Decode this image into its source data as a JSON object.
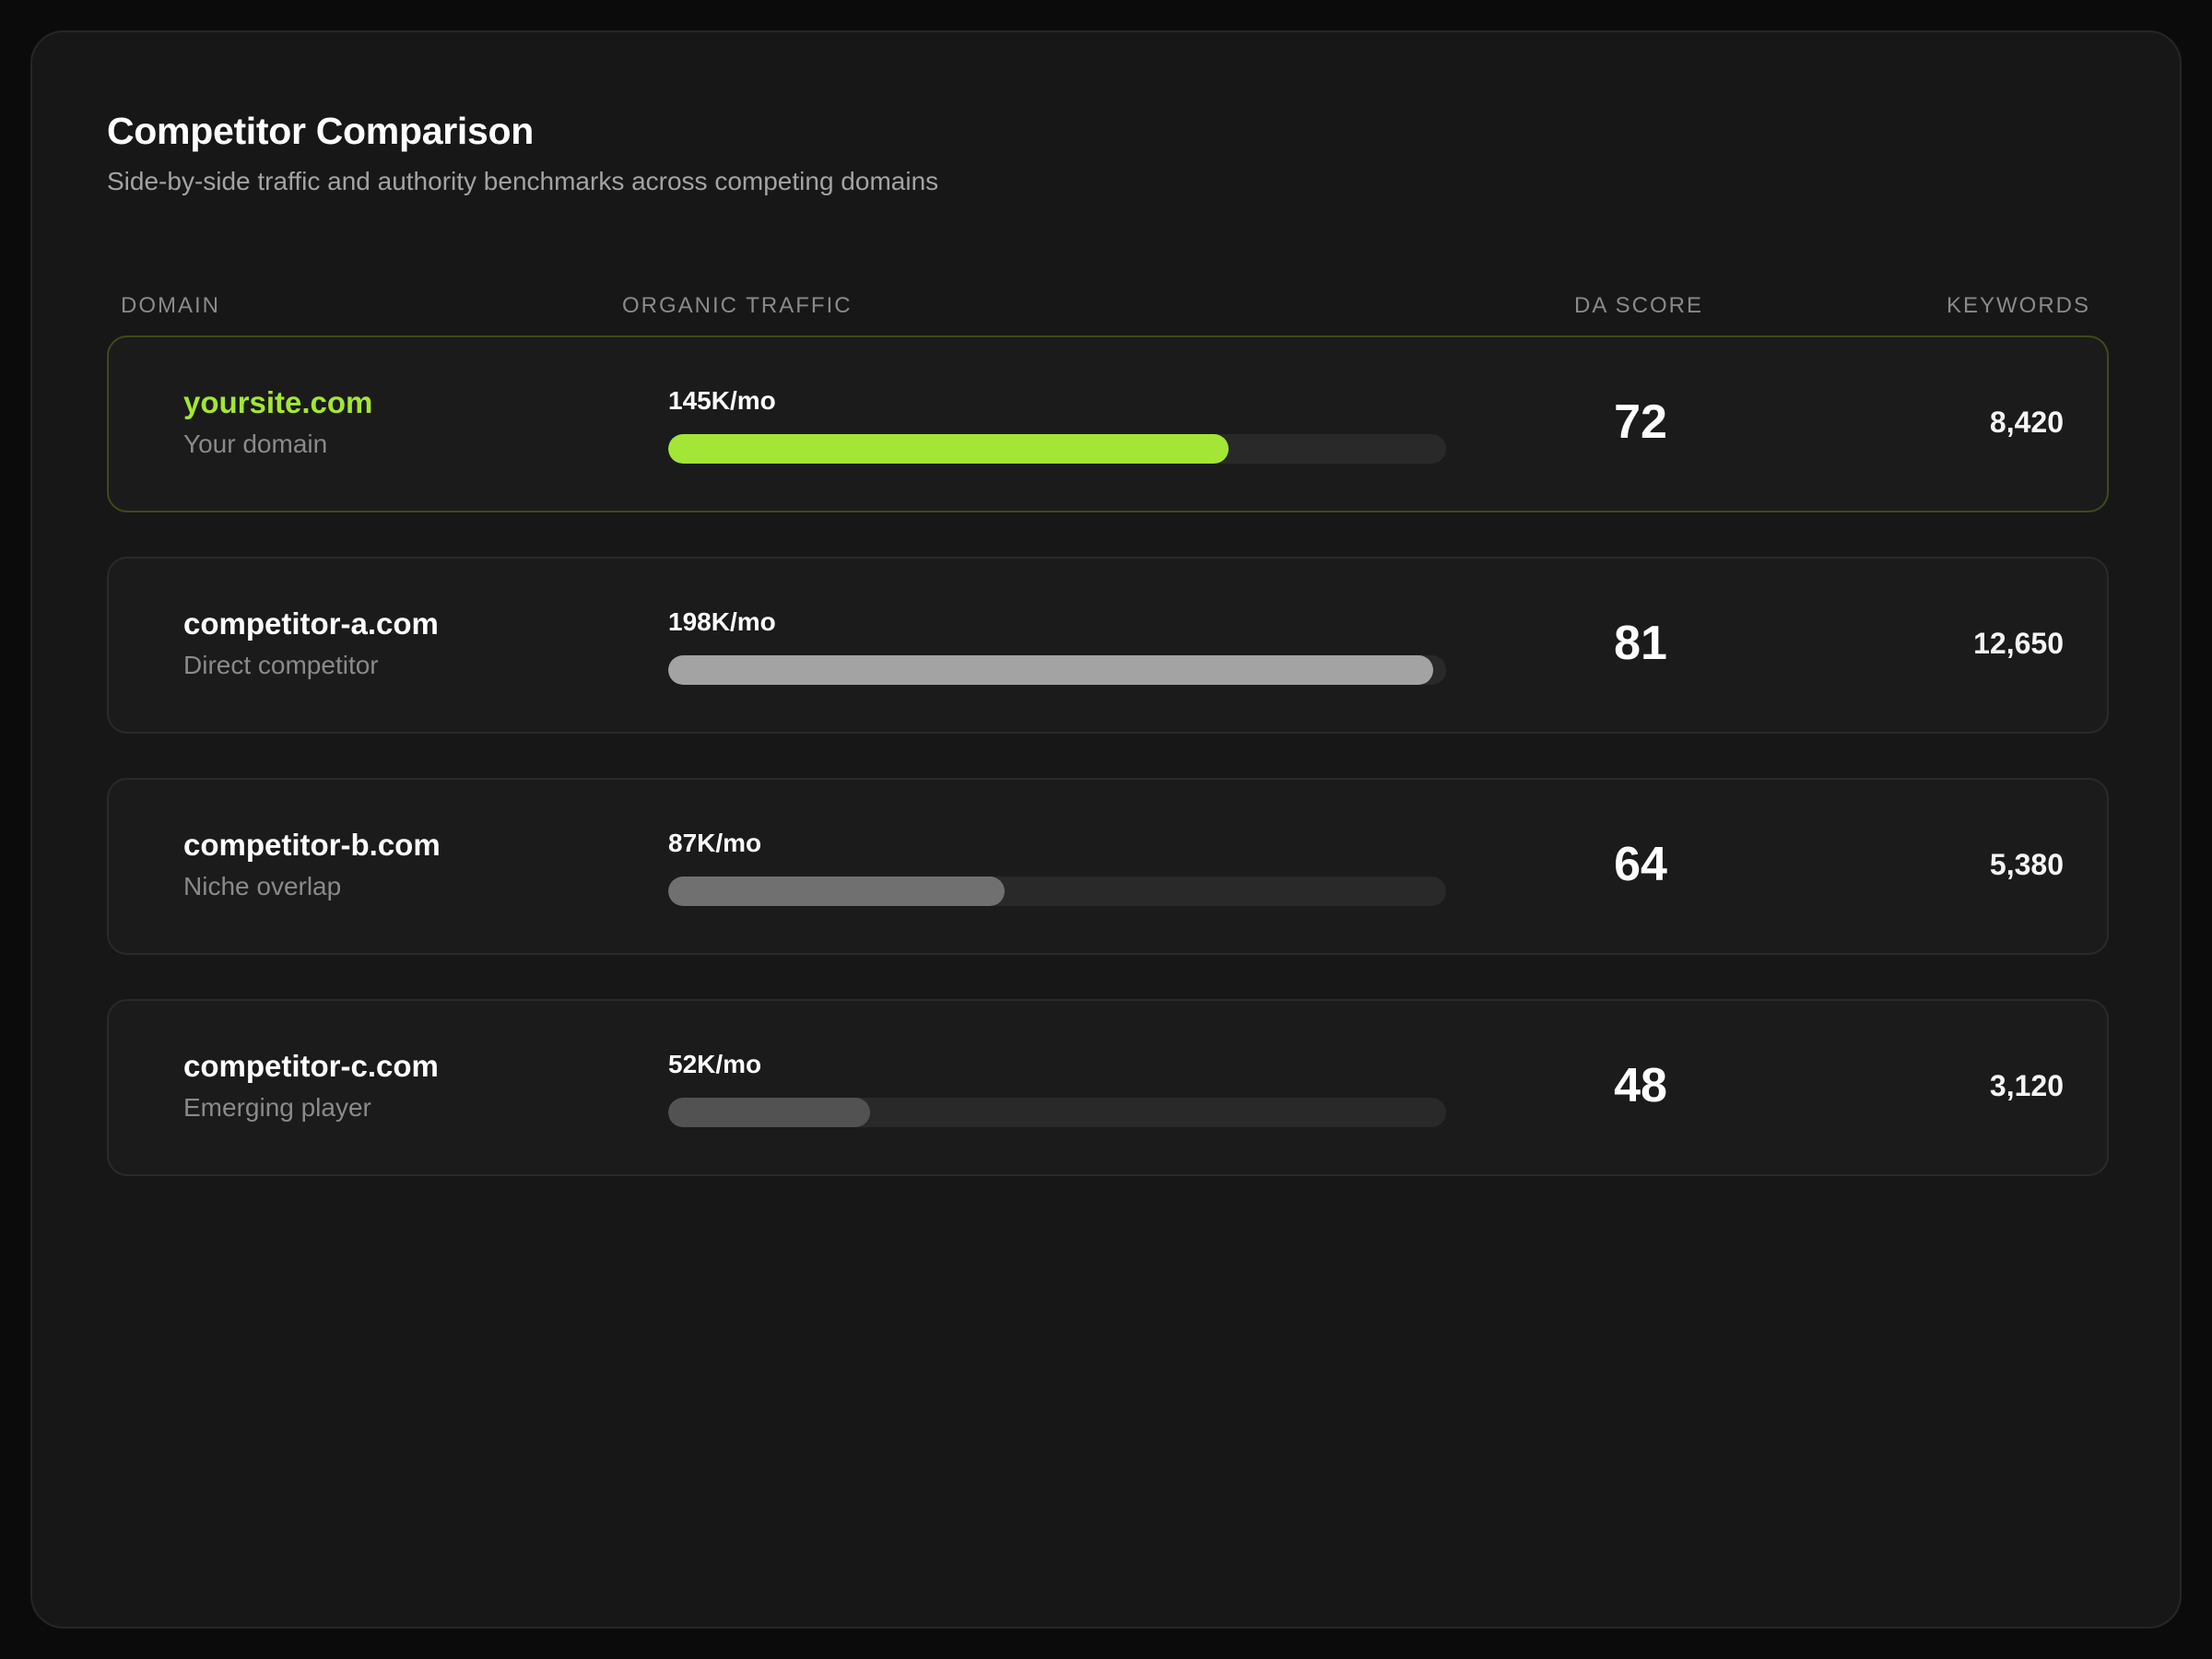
{
  "header": {
    "title": "Competitor Comparison",
    "subtitle": "Side-by-side traffic and authority benchmarks across competing domains"
  },
  "columns": {
    "domain": "DOMAIN",
    "traffic": "ORGANIC TRAFFIC",
    "da": "DA SCORE",
    "keywords": "KEYWORDS"
  },
  "colors": {
    "accent": "#a3e635",
    "bar_track": "#292929"
  },
  "rows": [
    {
      "domain": "yoursite.com",
      "sublabel": "Your domain",
      "traffic": "145K/mo",
      "traffic_fraction": 0.72,
      "bar_color": "#a3e635",
      "da": "72",
      "keywords": "8,420",
      "own": true
    },
    {
      "domain": "competitor-a.com",
      "sublabel": "Direct competitor",
      "traffic": "198K/mo",
      "traffic_fraction": 0.983,
      "bar_color": "#a3a3a3",
      "da": "81",
      "keywords": "12,650",
      "own": false
    },
    {
      "domain": "competitor-b.com",
      "sublabel": "Niche overlap",
      "traffic": "87K/mo",
      "traffic_fraction": 0.432,
      "bar_color": "#707070",
      "da": "64",
      "keywords": "5,380",
      "own": false
    },
    {
      "domain": "competitor-c.com",
      "sublabel": "Emerging player",
      "traffic": "52K/mo",
      "traffic_fraction": 0.26,
      "bar_color": "#525252",
      "da": "48",
      "keywords": "3,120",
      "own": false
    }
  ]
}
